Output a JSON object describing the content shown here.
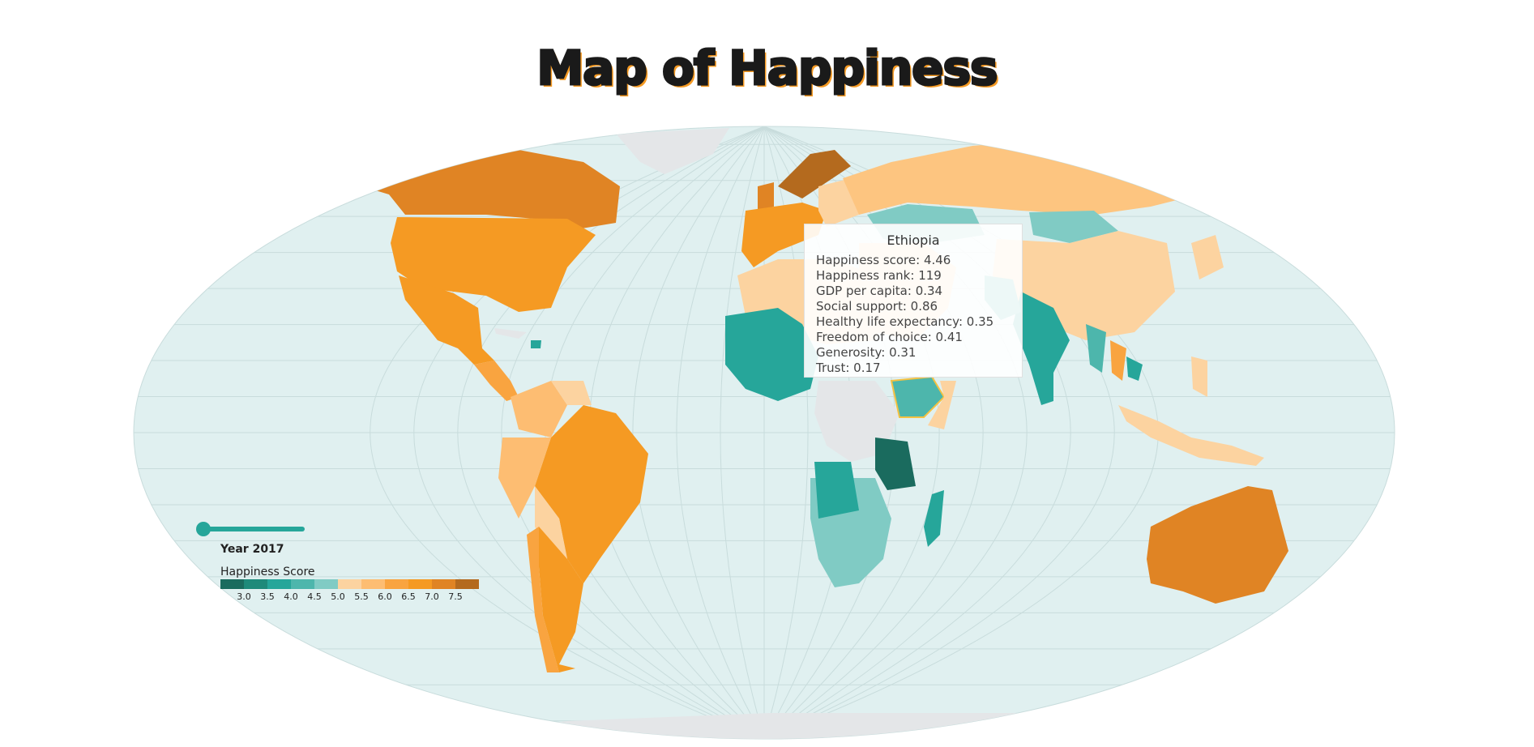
{
  "title": "Map of Happiness",
  "map": {
    "projection": "natural-earth",
    "ocean_color": "#e0f0f0",
    "graticule_color": "#c8dcdc",
    "no_data_color": "#e4e6e8",
    "highlight_stroke": "#f5c242",
    "highlighted_country": "Ethiopia"
  },
  "tooltip": {
    "country": "Ethiopia",
    "rows": [
      "Happiness score: 4.46",
      "Happiness rank: 119",
      "GDP per capita: 0.34",
      "Social support: 0.86",
      "Healthy life expectancy: 0.35",
      "Freedom of choice: 0.41",
      "Generosity: 0.31",
      "Trust: 0.17"
    ]
  },
  "slider": {
    "value_fraction": 0
  },
  "year_label": "Year 2017",
  "legend": {
    "title": "Happiness Score",
    "ticks": [
      "3.0",
      "3.5",
      "4.0",
      "4.5",
      "5.0",
      "5.5",
      "6.0",
      "6.5",
      "7.0",
      "7.5"
    ],
    "colors": [
      "#1a6b5e",
      "#1e8a7a",
      "#26a69a",
      "#4db6ac",
      "#80cbc4",
      "#fcd3a0",
      "#fdbd72",
      "#f9a440",
      "#f59a23",
      "#e08424",
      "#b46a1e"
    ]
  }
}
